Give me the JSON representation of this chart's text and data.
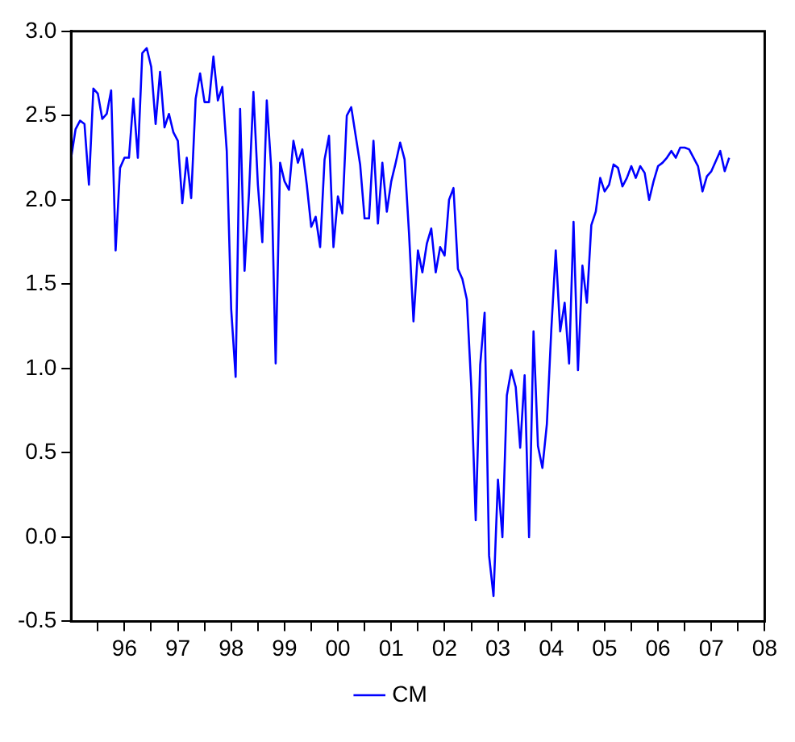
{
  "chart_data": {
    "type": "line",
    "legend": "bottom",
    "marker": "none",
    "line_style": "solid",
    "grid": false,
    "xlim": [
      "1995-07",
      "2008-07"
    ],
    "xticks": [
      {
        "value": "1996-01",
        "label": null
      },
      {
        "value": "1996-07",
        "label": "96"
      },
      {
        "value": "1997-01",
        "label": null
      },
      {
        "value": "1997-07",
        "label": "97"
      },
      {
        "value": "1998-01",
        "label": null
      },
      {
        "value": "1998-07",
        "label": "98"
      },
      {
        "value": "1999-01",
        "label": null
      },
      {
        "value": "1999-07",
        "label": "99"
      },
      {
        "value": "2000-01",
        "label": null
      },
      {
        "value": "2000-07",
        "label": "00"
      },
      {
        "value": "2001-01",
        "label": null
      },
      {
        "value": "2001-07",
        "label": "01"
      },
      {
        "value": "2002-01",
        "label": null
      },
      {
        "value": "2002-07",
        "label": "02"
      },
      {
        "value": "2003-01",
        "label": null
      },
      {
        "value": "2003-07",
        "label": "03"
      },
      {
        "value": "2004-01",
        "label": null
      },
      {
        "value": "2004-07",
        "label": "04"
      },
      {
        "value": "2005-01",
        "label": null
      },
      {
        "value": "2005-07",
        "label": "05"
      },
      {
        "value": "2006-01",
        "label": null
      },
      {
        "value": "2006-07",
        "label": "06"
      },
      {
        "value": "2007-01",
        "label": null
      },
      {
        "value": "2007-07",
        "label": "07"
      },
      {
        "value": "2008-01",
        "label": null
      },
      {
        "value": "2008-07",
        "label": "08"
      }
    ],
    "ylim": [
      -0.5,
      3.0
    ],
    "yticks": [
      -0.5,
      {
        "value": 0,
        "label": "0.0"
      },
      0.5,
      {
        "value": 1,
        "label": "1.0"
      },
      1.5,
      {
        "value": 2,
        "label": "2.0"
      },
      2.5,
      {
        "value": 3,
        "label": "3.0"
      }
    ],
    "x": [
      "1995-07",
      "1995-08",
      "1995-09",
      "1995-10",
      "1995-11",
      "1995-12",
      "1996-01",
      "1996-02",
      "1996-03",
      "1996-04",
      "1996-05",
      "1996-06",
      "1996-07",
      "1996-08",
      "1996-09",
      "1996-10",
      "1996-11",
      "1996-12",
      "1997-01",
      "1997-02",
      "1997-03",
      "1997-04",
      "1997-05",
      "1997-06",
      "1997-07",
      "1997-08",
      "1997-09",
      "1997-10",
      "1997-11",
      "1997-12",
      "1998-01",
      "1998-02",
      "1998-03",
      "1998-04",
      "1998-05",
      "1998-06",
      "1998-07",
      "1998-08",
      "1998-09",
      "1998-10",
      "1998-11",
      "1998-12",
      "1999-01",
      "1999-02",
      "1999-03",
      "1999-04",
      "1999-05",
      "1999-06",
      "1999-07",
      "1999-08",
      "1999-09",
      "1999-10",
      "1999-11",
      "1999-12",
      "2000-01",
      "2000-02",
      "2000-03",
      "2000-04",
      "2000-05",
      "2000-06",
      "2000-07",
      "2000-08",
      "2000-09",
      "2000-10",
      "2000-11",
      "2000-12",
      "2001-01",
      "2001-02",
      "2001-03",
      "2001-04",
      "2001-05",
      "2001-06",
      "2001-07",
      "2001-08",
      "2001-09",
      "2001-10",
      "2001-11",
      "2001-12",
      "2002-01",
      "2002-02",
      "2002-03",
      "2002-04",
      "2002-05",
      "2002-06",
      "2002-07",
      "2002-08",
      "2002-09",
      "2002-10",
      "2002-11",
      "2002-12",
      "2003-01",
      "2003-02",
      "2003-03",
      "2003-04",
      "2003-05",
      "2003-06",
      "2003-07",
      "2003-08",
      "2003-09",
      "2003-10",
      "2003-11",
      "2003-12",
      "2004-01",
      "2004-02",
      "2004-03",
      "2004-04",
      "2004-05",
      "2004-06",
      "2004-07",
      "2004-08",
      "2004-09",
      "2004-10",
      "2004-11",
      "2004-12",
      "2005-01",
      "2005-02",
      "2005-03",
      "2005-04",
      "2005-05",
      "2005-06",
      "2005-07",
      "2005-08",
      "2005-09",
      "2005-10",
      "2005-11",
      "2005-12",
      "2006-01",
      "2006-02",
      "2006-03",
      "2006-04",
      "2006-05",
      "2006-06",
      "2006-07",
      "2006-08",
      "2006-09",
      "2006-10",
      "2006-11",
      "2006-12",
      "2007-01",
      "2007-02",
      "2007-03",
      "2007-04",
      "2007-05",
      "2007-06",
      "2007-07",
      "2007-08",
      "2007-09",
      "2007-10",
      "2007-11"
    ],
    "series": [
      {
        "name": "CM",
        "color": "#0000ff",
        "values": [
          2.25,
          2.42,
          2.47,
          2.45,
          2.09,
          2.66,
          2.63,
          2.48,
          2.51,
          2.65,
          1.7,
          2.19,
          2.25,
          2.25,
          2.6,
          2.25,
          2.87,
          2.9,
          2.79,
          2.45,
          2.76,
          2.43,
          2.51,
          2.4,
          2.35,
          1.98,
          2.25,
          2.01,
          2.6,
          2.75,
          2.58,
          2.58,
          2.85,
          2.59,
          2.67,
          2.29,
          1.35,
          0.95,
          2.54,
          1.58,
          2.04,
          2.64,
          2.09,
          1.75,
          2.59,
          2.19,
          1.03,
          2.22,
          2.11,
          2.06,
          2.35,
          2.22,
          2.3,
          2.09,
          1.84,
          1.9,
          1.72,
          2.24,
          2.38,
          1.72,
          2.02,
          1.92,
          2.5,
          2.55,
          2.38,
          2.21,
          1.89,
          1.89,
          2.35,
          1.86,
          2.22,
          1.93,
          2.11,
          2.22,
          2.34,
          2.24,
          1.8,
          1.28,
          1.7,
          1.57,
          1.74,
          1.83,
          1.57,
          1.72,
          1.67,
          2.0,
          2.07,
          1.59,
          1.53,
          1.41,
          0.89,
          0.1,
          1.02,
          1.33,
          -0.11,
          -0.35,
          0.34,
          0.0,
          0.84,
          0.99,
          0.89,
          0.53,
          0.96,
          0.0,
          1.22,
          0.54,
          0.41,
          0.67,
          1.23,
          1.7,
          1.22,
          1.39,
          1.03,
          1.87,
          0.99,
          1.61,
          1.39,
          1.85,
          1.93,
          2.13,
          2.05,
          2.09,
          2.21,
          2.19,
          2.08,
          2.13,
          2.2,
          2.13,
          2.2,
          2.16,
          2.0,
          2.11,
          2.2,
          2.22,
          2.25,
          2.29,
          2.25,
          2.31,
          2.31,
          2.3,
          2.25,
          2.2,
          2.05,
          2.14,
          2.17,
          2.23,
          2.29,
          2.17,
          2.25
        ]
      }
    ]
  }
}
